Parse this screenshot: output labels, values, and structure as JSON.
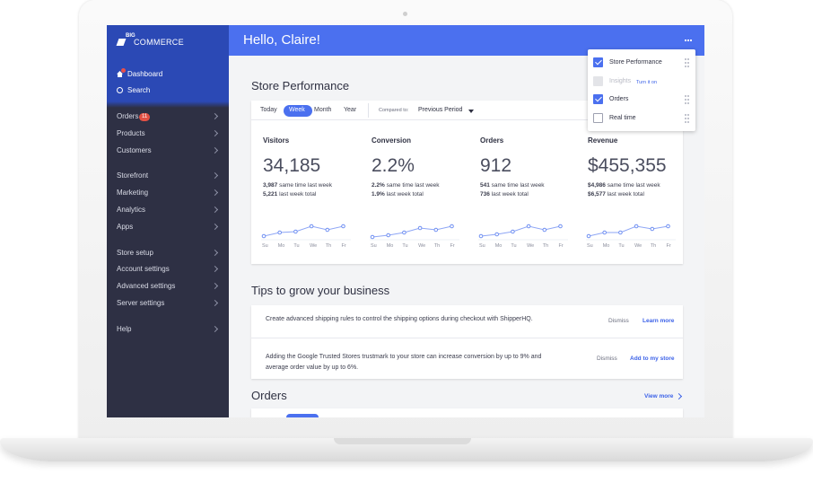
{
  "header": {
    "greeting": "Hello, Claire!"
  },
  "sidebar": {
    "logo_small": "BIG",
    "logo": "COMMERCE",
    "top_nav": [
      "Dashboard",
      "Search"
    ],
    "nav_groups": [
      [
        {
          "label": "Orders",
          "badge": "11"
        },
        {
          "label": "Products"
        },
        {
          "label": "Customers"
        }
      ],
      [
        {
          "label": "Storefront"
        },
        {
          "label": "Marketing"
        },
        {
          "label": "Analytics"
        },
        {
          "label": "Apps"
        }
      ],
      [
        {
          "label": "Store setup"
        },
        {
          "label": "Account settings"
        },
        {
          "label": "Advanced settings"
        },
        {
          "label": "Server settings"
        }
      ],
      [
        {
          "label": "Help"
        }
      ]
    ]
  },
  "store_performance": {
    "title": "Store Performance",
    "tabs": [
      "Today",
      "Week",
      "Month",
      "Year"
    ],
    "active_tab": 1,
    "compared_label": "Compared to:",
    "compared_value": "Previous Period",
    "days": [
      "Su",
      "Mo",
      "Tu",
      "We",
      "Th",
      "Fr"
    ],
    "metrics": [
      {
        "label": "Visitors",
        "value": "34,185",
        "lines": [
          {
            "number": "3,987",
            "text": "same time last week"
          },
          {
            "number": "5,221",
            "text": "last week total"
          }
        ],
        "sparkline": [
          3,
          7,
          8,
          14,
          10,
          14
        ]
      },
      {
        "label": "Conversion",
        "value": "2.2%",
        "lines": [
          {
            "number": "2.2%",
            "text": "same time last week"
          },
          {
            "number": "1.9%",
            "text": "last week total"
          }
        ],
        "sparkline": [
          2,
          4,
          7,
          12,
          10,
          14
        ]
      },
      {
        "label": "Orders",
        "value": "912",
        "lines": [
          {
            "number": "541",
            "text": "same time last week"
          },
          {
            "number": "736",
            "text": "last week total"
          }
        ],
        "sparkline": [
          3,
          5,
          8,
          14,
          10,
          14
        ]
      },
      {
        "label": "Revenue",
        "value": "$455,355",
        "lines": [
          {
            "number": "$4,986",
            "text": "same time last week"
          },
          {
            "number": "$6,577",
            "text": "last week total"
          }
        ],
        "sparkline": [
          3,
          7,
          7,
          14,
          11,
          14
        ]
      }
    ]
  },
  "tips": {
    "title": "Tips to grow your business",
    "items": [
      {
        "text": "Create advanced shipping rules to control the shipping options during checkout with ShipperHQ.",
        "dismiss": "Dismiss",
        "action": "Learn more"
      },
      {
        "text": "Adding the Google Trusted Stores trustmark to your store can increase conversion by up to 9% and average order value by up to 6%.",
        "dismiss": "Dismiss",
        "action": "Add to my store"
      }
    ]
  },
  "orders": {
    "title": "Orders",
    "link": "View more"
  },
  "menu": {
    "items": [
      {
        "label": "Store Performance",
        "checked": true
      },
      {
        "label": "Insights",
        "disabled": true,
        "action": "Turn it on"
      },
      {
        "label": "Orders",
        "checked": true
      },
      {
        "label": "Real time",
        "checked": false
      }
    ]
  }
}
